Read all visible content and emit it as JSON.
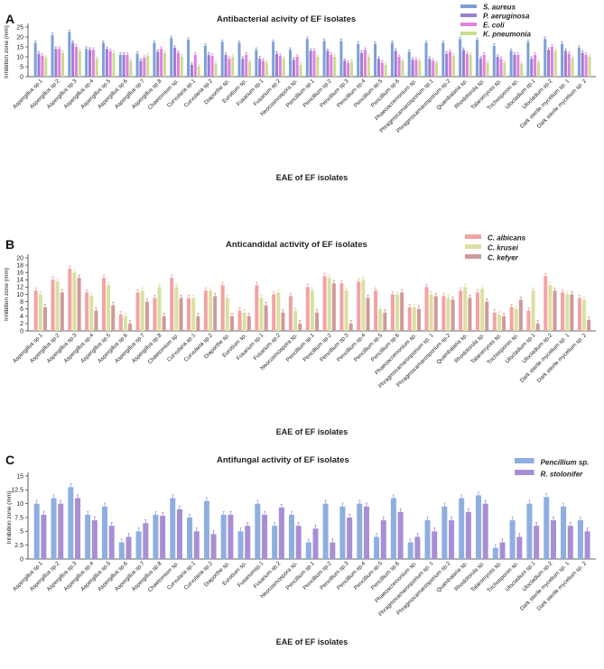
{
  "chart_data": [
    {
      "type": "bar",
      "panel": "A",
      "title": "Antibacterial acivity of EF isolates",
      "xlabel": "EAE of EF isolates",
      "ylabel": "Inhibition zone (mm)",
      "ylim": [
        0,
        25
      ],
      "yticks": [
        0,
        5,
        10,
        15,
        20,
        25
      ],
      "categories": [
        "Aspergillus sp.1",
        "Aspergillus sp.2",
        "Aspergillus sp.3",
        "Aspergillus sp.4",
        "Aspergillus sp.5",
        "Aspergillus sp.6",
        "Aspergillus sp.7",
        "Aspergillus sp.8",
        "Chaetomium sp.",
        "Curvularia sp.1",
        "Curvularia sp.2",
        "Diaporthe sp.",
        "Eurotium sp.",
        "Fusarium sp.1",
        "Fusarium sp.2",
        "Neocosmospora sp.",
        "Pencillium sp.1",
        "Pencillium sp.2",
        "Pencillium sp.3",
        "Pencillium sp.4",
        "Pencillium sp.5",
        "Pencillium sp.6",
        "Phaeoacremonium sp.",
        "Phragmocamarosporium sp.1",
        "Phragmocamarosporium sp.2",
        "Quambalaria sp.",
        "Rhodotorula sp.",
        "Talaromyces sp.",
        "Trichosporon sp.",
        "Ulocladium sp.1",
        "Ulocladium sp.2",
        "Dark sterile mycelium sp. 1",
        "Dark sterile mycelium sp. 2"
      ],
      "series": [
        {
          "name": "S. aureus",
          "color": "#7f9fd6",
          "values": [
            17,
            21,
            22.5,
            14,
            17,
            11,
            11.5,
            17,
            19.5,
            18.5,
            15.5,
            17.5,
            17,
            13.5,
            17.5,
            13.5,
            19,
            18,
            18,
            16.5,
            16.5,
            17,
            12.5,
            17,
            17,
            19,
            18.5,
            15.5,
            13,
            17.5,
            19,
            16.5,
            14.5
          ]
        },
        {
          "name": "P. aeruginosa",
          "color": "#9a7fcf",
          "values": [
            11.5,
            14,
            17,
            13.5,
            14,
            11,
            8,
            12.5,
            14.5,
            6,
            11,
            11,
            9,
            9,
            11.5,
            8.5,
            13,
            13,
            8,
            12,
            9,
            13,
            8.5,
            9,
            11.5,
            13.5,
            9,
            10,
            11,
            9,
            13.5,
            13,
            12
          ]
        },
        {
          "name": "E. coli",
          "color": "#e27fe2",
          "values": [
            10.5,
            14,
            15,
            13.5,
            13,
            11,
            9.5,
            14,
            12,
            11,
            10.5,
            9,
            11,
            8,
            10.5,
            10,
            13,
            11,
            7,
            13.5,
            7,
            10,
            8.5,
            8,
            12.5,
            11.5,
            11,
            9,
            11,
            11,
            15,
            11.5,
            11
          ]
        },
        {
          "name": "K. pneumonia",
          "color": "#c9dc8f",
          "values": [
            9.5,
            12,
            13,
            9,
            12,
            8,
            10.5,
            12,
            10,
            5,
            6.5,
            10,
            7.5,
            7,
            9,
            6,
            10,
            10,
            7.5,
            10,
            6,
            8,
            8,
            7,
            10.5,
            11,
            7,
            7,
            6.5,
            7.5,
            13,
            9.5,
            10
          ]
        }
      ]
    },
    {
      "type": "bar",
      "panel": "B",
      "title": "Anticandidal activity of EF isolates",
      "xlabel": "EAE of EF isolates",
      "ylabel": "Inhibition zone (mm)",
      "ylim": [
        0,
        20
      ],
      "yticks": [
        0,
        2,
        4,
        6,
        8,
        10,
        12,
        14,
        16,
        18,
        20
      ],
      "categories": [
        "Aspergillus sp.1",
        "Aspergillus sp.2",
        "Aspergillus sp.3",
        "Aspergillus sp.4",
        "Aspergillus sp.5",
        "Aspergillus sp.6",
        "Aspergillus sp.7",
        "Aspergillus sp.8",
        "Chaetomium sp.",
        "Curvularia sp.1",
        "Curvularia sp.2",
        "Diaporthe sp.",
        "Eurotium sp.",
        "Fusarium sp.1",
        "Fusarium sp.2",
        "Neocosmospora sp.",
        "Pencillium sp.1",
        "Pencillium sp.2",
        "Pencillium sp.3",
        "Pencillium sp.4",
        "Pencillium sp.5",
        "Pencillium sp.6",
        "Phaeoacremonium sp.",
        "Phragmocamarosporium sp. 1",
        "Phragmocamarosporium sp.2",
        "Quambalaria sp.",
        "Rhodotorula sp.",
        "Talaromyces sp.",
        "Trichosporon sp.",
        "Ulocladium sp.1",
        "Ulocladium sp.2",
        "Dark sterile mycelium sp. 1",
        "Dark sterile mycelium sp. 2"
      ],
      "series": [
        {
          "name": "C. albicans",
          "color": "#f2a3a3",
          "values": [
            11,
            14,
            17,
            10.5,
            14.5,
            4.5,
            10.5,
            9,
            14.5,
            9,
            11,
            12.5,
            5.5,
            12.5,
            10,
            9.5,
            12,
            15,
            13,
            13.5,
            11,
            10,
            6.5,
            12,
            9.5,
            11,
            10.5,
            5,
            6.5,
            5.5,
            15,
            10.5,
            9
          ]
        },
        {
          "name": "C. krusei",
          "color": "#dbe0a1",
          "values": [
            10,
            13.5,
            16,
            9.5,
            12.5,
            4,
            11,
            12,
            12,
            9,
            11,
            9,
            5,
            9,
            10.5,
            5.5,
            11,
            14.5,
            11,
            14,
            6,
            10,
            6.5,
            10,
            9,
            12,
            11.5,
            4.5,
            6,
            11,
            12.5,
            10,
            8.5
          ]
        },
        {
          "name": "C. kefyer",
          "color": "#cf9a9a",
          "values": [
            6.5,
            10.5,
            14.5,
            5.5,
            7,
            2,
            8,
            4,
            9,
            4,
            9.5,
            4,
            4,
            7,
            5,
            2,
            5,
            13,
            2,
            9,
            5,
            10.5,
            6,
            9.5,
            8.5,
            9,
            8,
            4,
            8.5,
            2,
            11,
            10,
            3
          ]
        }
      ]
    },
    {
      "type": "bar",
      "panel": "C",
      "title": "Antifungal activity of EF isolates",
      "xlabel": "EAE of EF isolates",
      "ylabel": "Inhibition zone (mm)",
      "ylim": [
        0,
        15
      ],
      "yticks": [
        0,
        2.5,
        5,
        7.5,
        10,
        12.5,
        15
      ],
      "ytick_labels": [
        "0",
        "2.5",
        "5",
        "7.5",
        "10",
        "12.5",
        "15"
      ],
      "categories": [
        "Aspergillus sp.1",
        "Aspergillus sp.2",
        "Aspergillus sp.3",
        "Aspergillus sp.4",
        "Aspergillus sp.5",
        "Aspergillus sp.6",
        "Aspergillus sp.7",
        "Aspergillus sp.8",
        "Chaetomium sp.",
        "Curvularia sp.1",
        "Curvularia sp.2",
        "Diaporthe sp.",
        "Eurotium sp.",
        "Fusariumsp.1",
        "Fusarium sp.2",
        "Neocosmospora sp.",
        "Pencillium sp.1",
        "Pencillium sp.2",
        "Pencillium sp.3",
        "Pencillium sp.4",
        "Pencillium sp.5",
        "Pencillium sp.6",
        "Phaeoacremonium sp.",
        "Phragmocamarosporium sp. 1",
        "Phragmocamarosporium sp.2",
        "Quambalaria sp.",
        "Rhodotorula sp.",
        "Talaromyces sp.",
        "Trichosporon sp.",
        "Ulocladium sp.1",
        "Ulocladium sp.2",
        "Dark sterile mycelium sp. 1",
        "Dark sterile mycelium sp. 2"
      ],
      "series": [
        {
          "name": "Pencillium sp.",
          "color": "#8faee0",
          "values": [
            10,
            11,
            13,
            8,
            9.5,
            3,
            5,
            8,
            11,
            7.5,
            10.5,
            8,
            5,
            10,
            6,
            8,
            3,
            10,
            9.5,
            10,
            4,
            11,
            3,
            7,
            9.5,
            11,
            11.5,
            2,
            7,
            10,
            11.2,
            9.5,
            7
          ]
        },
        {
          "name": "R. stolonifer",
          "color": "#a88fd4",
          "values": [
            8,
            10,
            11,
            7,
            6,
            4,
            6.5,
            7.8,
            9,
            5,
            4.5,
            8,
            6,
            8,
            9.3,
            6,
            5.5,
            3,
            7.5,
            9.5,
            7,
            8.5,
            4,
            5,
            7,
            8.5,
            10,
            3,
            4,
            6,
            7,
            6,
            5
          ]
        }
      ]
    }
  ]
}
